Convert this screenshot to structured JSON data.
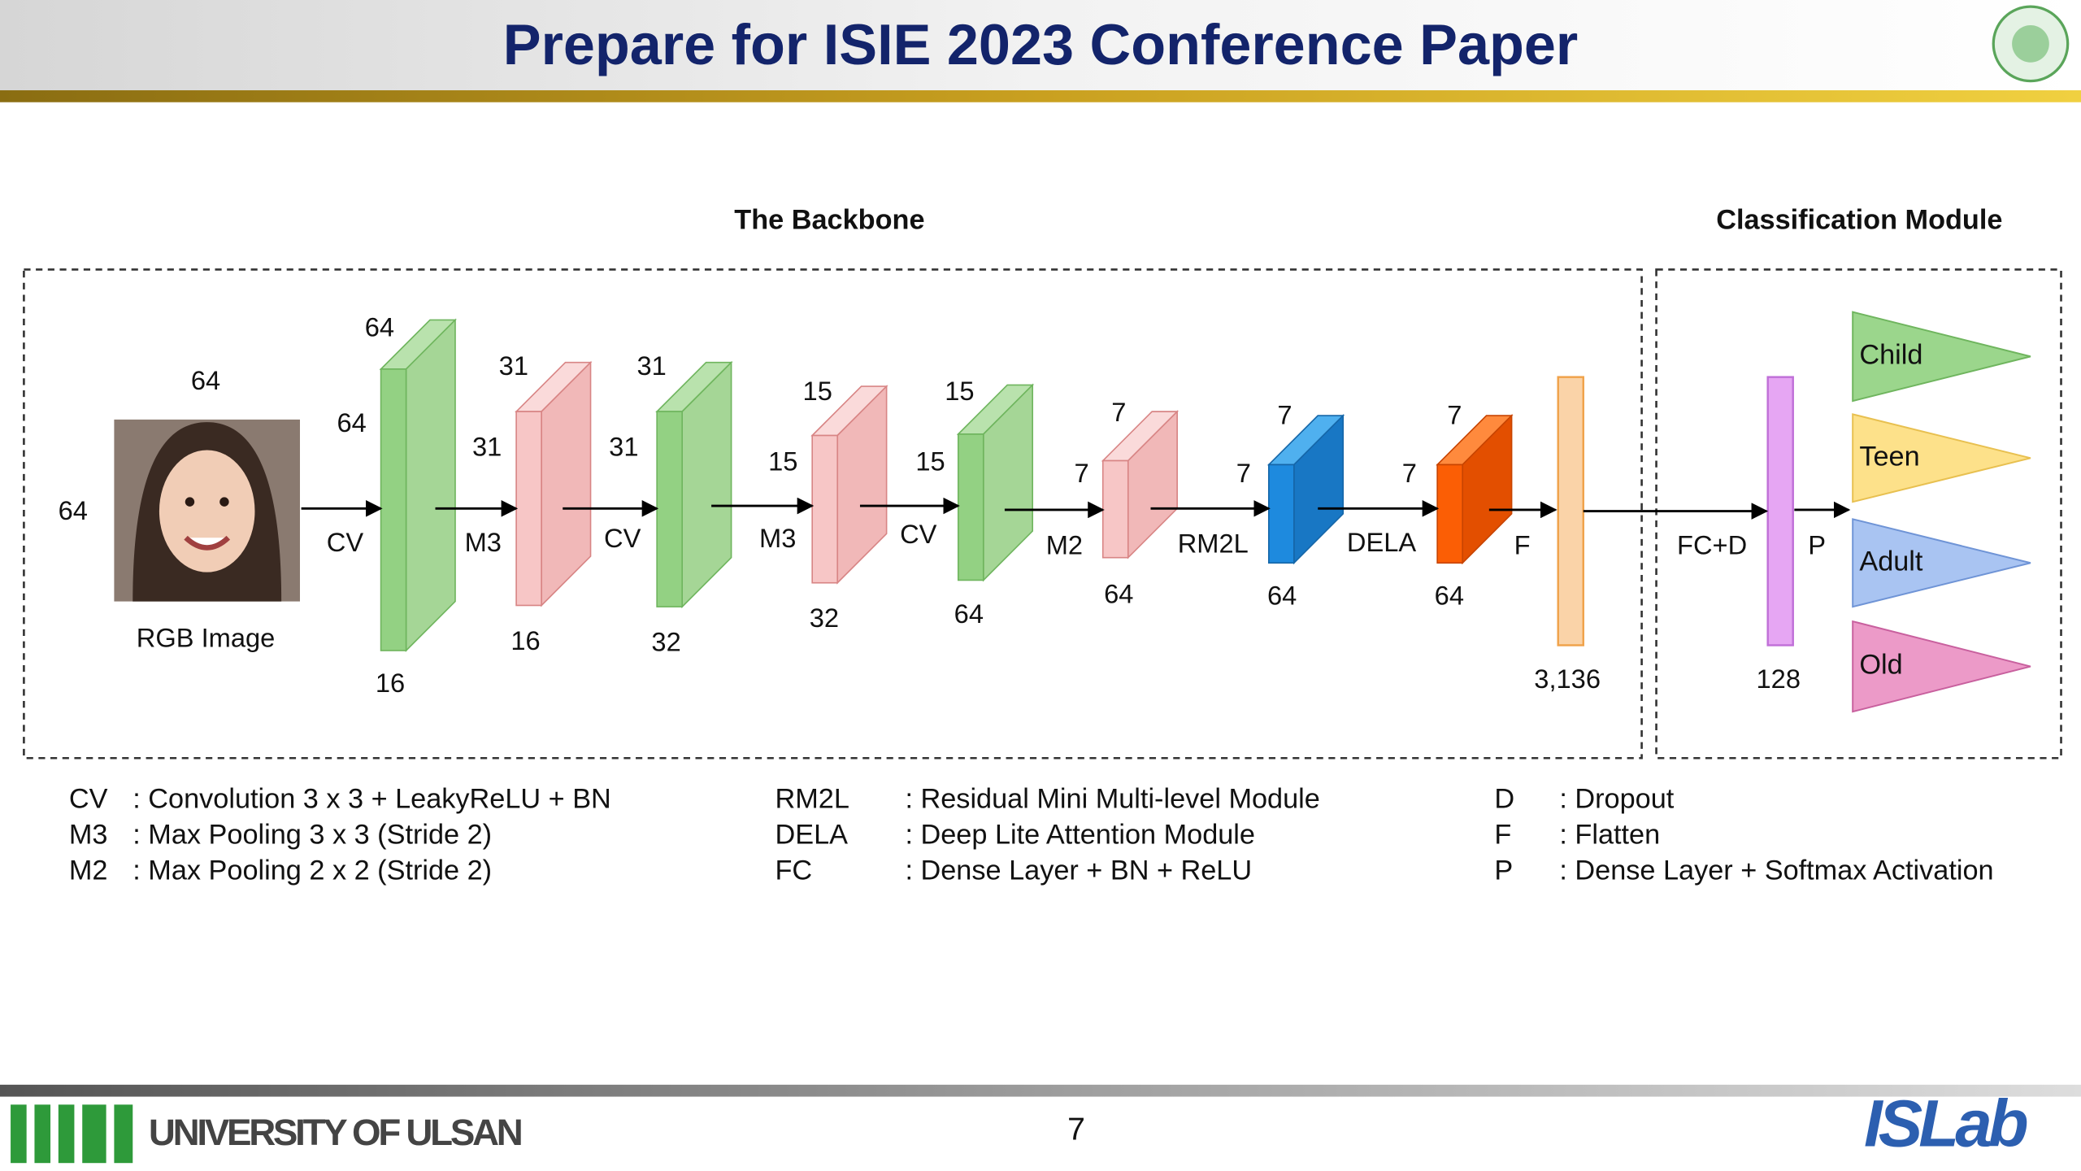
{
  "header": {
    "title": "Prepare for ISIE 2023 Conference Paper"
  },
  "diagram": {
    "sections": [
      "The Backbone",
      "Classification Module"
    ],
    "input": {
      "label": "RGB Image",
      "width": 64,
      "height": 64
    },
    "blocks": [
      {
        "width": 64,
        "height": 64,
        "channels": 16
      },
      {
        "width": 31,
        "height": 31,
        "channels": 16
      },
      {
        "width": 31,
        "height": 31,
        "channels": 32
      },
      {
        "width": 15,
        "height": 15,
        "channels": 32
      },
      {
        "width": 15,
        "height": 15,
        "channels": 64
      },
      {
        "width": 7,
        "height": 7,
        "channels": 64
      },
      {
        "width": 7,
        "height": 7,
        "channels": 64
      },
      {
        "width": 7,
        "height": 7,
        "channels": 64
      }
    ],
    "operations": [
      "CV",
      "M3",
      "CV",
      "M3",
      "CV",
      "M2",
      "RM2L",
      "DELA",
      "F",
      "FC+D",
      "P"
    ],
    "flatten": "3,136",
    "dense": 128,
    "classes": [
      "Child",
      "Teen",
      "Adult",
      "Old"
    ]
  },
  "legend": [
    {
      "abbr": "CV",
      "text": ": Convolution 3 x 3 + LeakyReLU + BN"
    },
    {
      "abbr": "M3",
      "text": ": Max Pooling 3 x 3 (Stride 2)"
    },
    {
      "abbr": "M2",
      "text": ": Max Pooling 2 x 2 (Stride 2)"
    },
    {
      "abbr": "RM2L",
      "text": ": Residual Mini Multi-level Module"
    },
    {
      "abbr": "DELA",
      "text": ": Deep Lite Attention Module"
    },
    {
      "abbr": "FC",
      "text": ": Dense Layer + BN + ReLU"
    },
    {
      "abbr": "D",
      "text": ": Dropout"
    },
    {
      "abbr": "F",
      "text": ": Flatten"
    },
    {
      "abbr": "P",
      "text": ": Dense Layer + Softmax Activation"
    }
  ],
  "footer": {
    "university": "UNIVERSITY OF ULSAN",
    "page": 7,
    "lab": "ISLab"
  }
}
